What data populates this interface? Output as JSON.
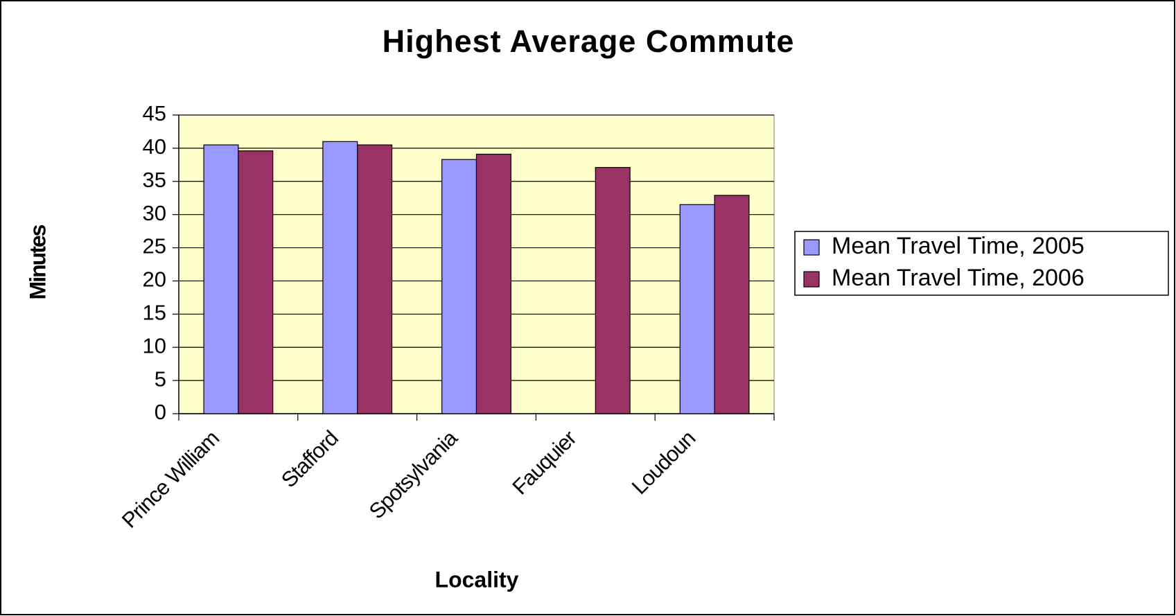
{
  "chart_data": {
    "type": "bar",
    "title": "Highest Average Commute",
    "x_label": "Locality",
    "y_label": "Minutes",
    "categories": [
      "Prince William",
      "Stafford",
      "Spotsylvania",
      "Fauquier",
      "Loudoun"
    ],
    "series": [
      {
        "name": "Mean Travel Time, 2005",
        "color": "#9999ff",
        "values": [
          40.5,
          41.0,
          38.3,
          null,
          31.5
        ]
      },
      {
        "name": "Mean Travel Time, 2006",
        "color": "#993366",
        "values": [
          39.6,
          40.5,
          39.1,
          37.1,
          32.9
        ]
      }
    ],
    "ylim": [
      0,
      45
    ],
    "yticks": [
      0,
      5,
      10,
      15,
      20,
      25,
      30,
      35,
      40,
      45
    ],
    "grid": true,
    "legend": "right",
    "plot_background": "#ffffcc"
  }
}
